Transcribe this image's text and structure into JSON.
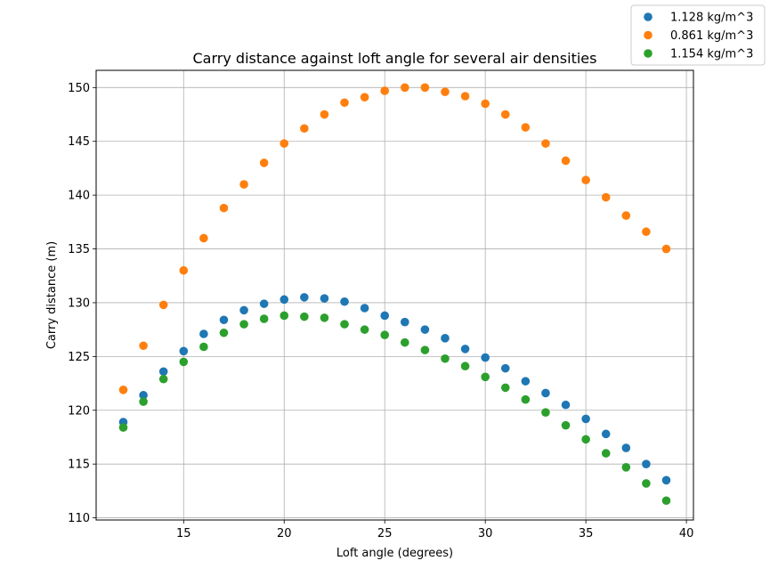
{
  "chart_data": {
    "type": "scatter",
    "title": "Carry distance against loft angle for several air densities",
    "xlabel": "Loft angle (degrees)",
    "ylabel": "Carry distance (m)",
    "xlim": [
      10.65,
      40.35
    ],
    "ylim": [
      109.8,
      151.6
    ],
    "xticks": [
      15,
      20,
      25,
      30,
      35,
      40
    ],
    "yticks": [
      110,
      115,
      120,
      125,
      130,
      135,
      140,
      145,
      150
    ],
    "grid": true,
    "legend_position": "top-right",
    "x": [
      12,
      13,
      14,
      15,
      16,
      17,
      18,
      19,
      20,
      21,
      22,
      23,
      24,
      25,
      26,
      27,
      28,
      29,
      30,
      31,
      32,
      33,
      34,
      35,
      36,
      37,
      38,
      39
    ],
    "series": [
      {
        "name": "1.128 kg/m^3",
        "color": "#1f77b4",
        "values": [
          118.9,
          121.4,
          123.6,
          125.5,
          127.1,
          128.4,
          129.3,
          129.9,
          130.3,
          130.5,
          130.4,
          130.1,
          129.5,
          128.8,
          128.2,
          127.5,
          126.7,
          125.7,
          124.9,
          123.9,
          122.7,
          121.6,
          120.5,
          119.2,
          117.8,
          116.5,
          115.0,
          113.5
        ]
      },
      {
        "name": "0.861 kg/m^3",
        "color": "#ff7f0e",
        "values": [
          121.9,
          126.0,
          129.8,
          133.0,
          136.0,
          138.8,
          141.0,
          143.0,
          144.8,
          146.2,
          147.5,
          148.6,
          149.1,
          149.7,
          150.0,
          150.0,
          149.6,
          149.2,
          148.5,
          147.5,
          146.3,
          144.8,
          143.2,
          141.4,
          139.8,
          138.1,
          136.6,
          135.0
        ]
      },
      {
        "name": "1.154 kg/m^3",
        "color": "#2ca02c",
        "values": [
          118.4,
          120.8,
          122.9,
          124.5,
          125.9,
          127.2,
          128.0,
          128.5,
          128.8,
          128.7,
          128.6,
          128.0,
          127.5,
          127.0,
          126.3,
          125.6,
          124.8,
          124.1,
          123.1,
          122.1,
          121.0,
          119.8,
          118.6,
          117.3,
          116.0,
          114.7,
          113.2,
          111.6
        ]
      }
    ]
  }
}
